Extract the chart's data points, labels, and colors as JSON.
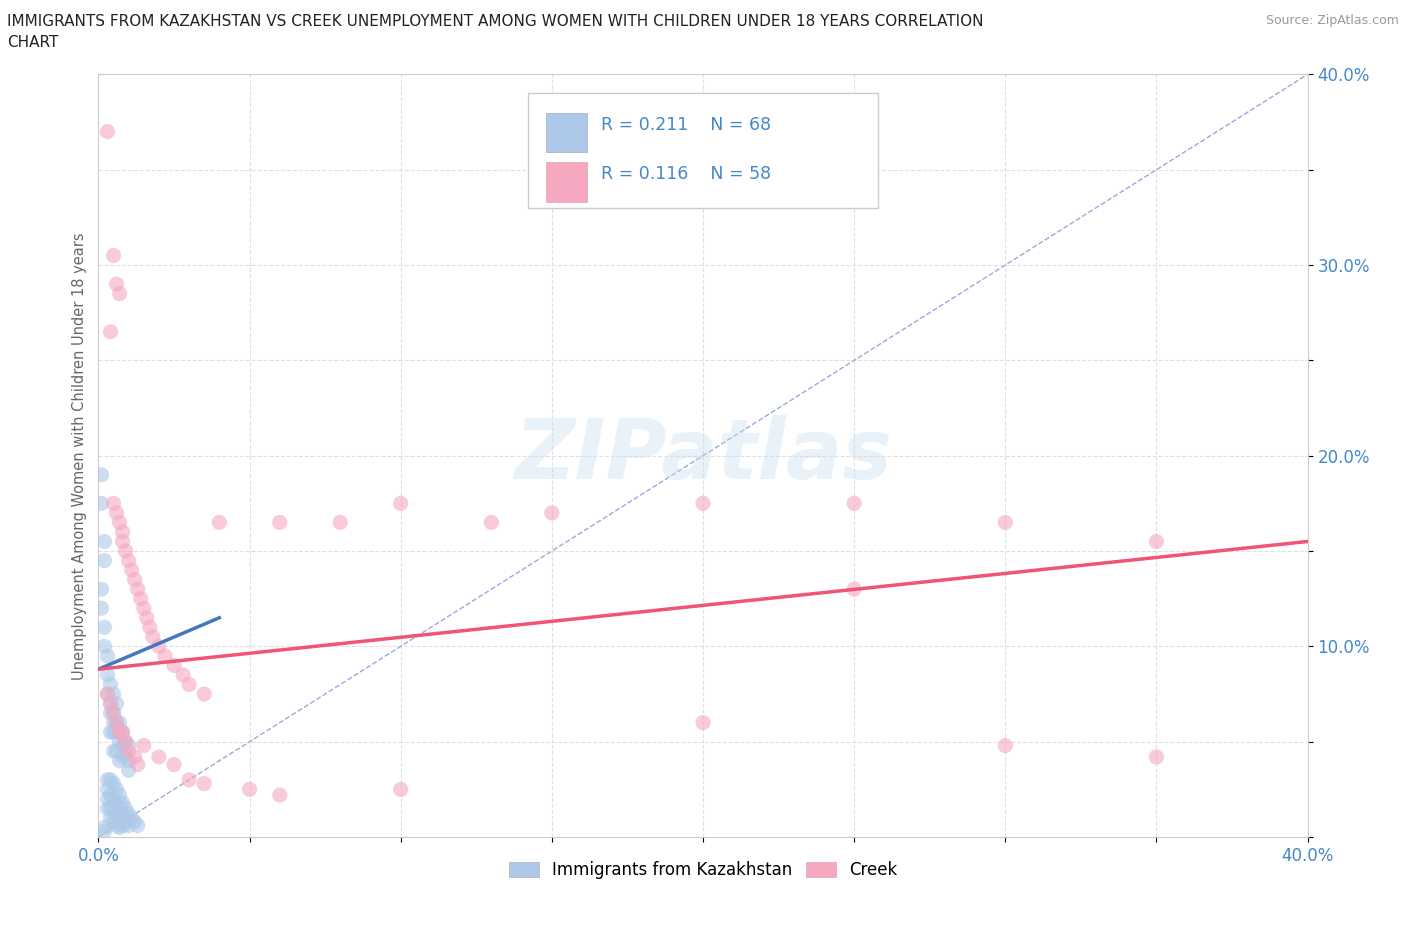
{
  "title_line1": "IMMIGRANTS FROM KAZAKHSTAN VS CREEK UNEMPLOYMENT AMONG WOMEN WITH CHILDREN UNDER 18 YEARS CORRELATION",
  "title_line2": "CHART",
  "source": "Source: ZipAtlas.com",
  "ylabel": "Unemployment Among Women with Children Under 18 years",
  "xlim": [
    0.0,
    0.4
  ],
  "ylim": [
    0.0,
    0.4
  ],
  "xticks": [
    0.0,
    0.05,
    0.1,
    0.15,
    0.2,
    0.25,
    0.3,
    0.35,
    0.4
  ],
  "yticks": [
    0.0,
    0.05,
    0.1,
    0.15,
    0.2,
    0.25,
    0.3,
    0.35,
    0.4
  ],
  "xticklabels": [
    "0.0%",
    "",
    "",
    "",
    "",
    "",
    "",
    "",
    "40.0%"
  ],
  "yticklabels": [
    "",
    "",
    "10.0%",
    "",
    "20.0%",
    "",
    "30.0%",
    "",
    "40.0%"
  ],
  "R_blue": 0.211,
  "N_blue": 68,
  "R_pink": 0.116,
  "N_pink": 58,
  "blue_color": "#adc8e8",
  "pink_color": "#f5a8bf",
  "blue_scatter": [
    [
      0.001,
      0.19
    ],
    [
      0.001,
      0.175
    ],
    [
      0.002,
      0.155
    ],
    [
      0.002,
      0.145
    ],
    [
      0.001,
      0.13
    ],
    [
      0.001,
      0.12
    ],
    [
      0.002,
      0.11
    ],
    [
      0.002,
      0.1
    ],
    [
      0.003,
      0.095
    ],
    [
      0.003,
      0.085
    ],
    [
      0.003,
      0.075
    ],
    [
      0.004,
      0.08
    ],
    [
      0.004,
      0.07
    ],
    [
      0.004,
      0.065
    ],
    [
      0.004,
      0.055
    ],
    [
      0.005,
      0.075
    ],
    [
      0.005,
      0.065
    ],
    [
      0.005,
      0.06
    ],
    [
      0.005,
      0.055
    ],
    [
      0.005,
      0.045
    ],
    [
      0.006,
      0.07
    ],
    [
      0.006,
      0.06
    ],
    [
      0.006,
      0.055
    ],
    [
      0.006,
      0.045
    ],
    [
      0.007,
      0.06
    ],
    [
      0.007,
      0.055
    ],
    [
      0.007,
      0.05
    ],
    [
      0.007,
      0.04
    ],
    [
      0.008,
      0.055
    ],
    [
      0.008,
      0.048
    ],
    [
      0.008,
      0.042
    ],
    [
      0.009,
      0.05
    ],
    [
      0.009,
      0.043
    ],
    [
      0.01,
      0.048
    ],
    [
      0.01,
      0.04
    ],
    [
      0.01,
      0.035
    ],
    [
      0.003,
      0.03
    ],
    [
      0.003,
      0.025
    ],
    [
      0.003,
      0.02
    ],
    [
      0.003,
      0.015
    ],
    [
      0.004,
      0.03
    ],
    [
      0.004,
      0.022
    ],
    [
      0.004,
      0.015
    ],
    [
      0.004,
      0.01
    ],
    [
      0.005,
      0.028
    ],
    [
      0.005,
      0.02
    ],
    [
      0.005,
      0.015
    ],
    [
      0.005,
      0.008
    ],
    [
      0.006,
      0.025
    ],
    [
      0.006,
      0.018
    ],
    [
      0.006,
      0.012
    ],
    [
      0.006,
      0.006
    ],
    [
      0.007,
      0.022
    ],
    [
      0.007,
      0.015
    ],
    [
      0.007,
      0.01
    ],
    [
      0.007,
      0.005
    ],
    [
      0.008,
      0.018
    ],
    [
      0.008,
      0.012
    ],
    [
      0.008,
      0.006
    ],
    [
      0.009,
      0.015
    ],
    [
      0.009,
      0.008
    ],
    [
      0.01,
      0.012
    ],
    [
      0.01,
      0.006
    ],
    [
      0.011,
      0.01
    ],
    [
      0.012,
      0.008
    ],
    [
      0.013,
      0.006
    ],
    [
      0.002,
      0.005
    ],
    [
      0.002,
      0.003
    ]
  ],
  "pink_scatter": [
    [
      0.003,
      0.37
    ],
    [
      0.005,
      0.305
    ],
    [
      0.007,
      0.285
    ],
    [
      0.004,
      0.265
    ],
    [
      0.006,
      0.29
    ],
    [
      0.005,
      0.175
    ],
    [
      0.006,
      0.17
    ],
    [
      0.007,
      0.165
    ],
    [
      0.008,
      0.16
    ],
    [
      0.008,
      0.155
    ],
    [
      0.009,
      0.15
    ],
    [
      0.01,
      0.145
    ],
    [
      0.011,
      0.14
    ],
    [
      0.012,
      0.135
    ],
    [
      0.013,
      0.13
    ],
    [
      0.014,
      0.125
    ],
    [
      0.015,
      0.12
    ],
    [
      0.016,
      0.115
    ],
    [
      0.017,
      0.11
    ],
    [
      0.018,
      0.105
    ],
    [
      0.02,
      0.1
    ],
    [
      0.022,
      0.095
    ],
    [
      0.025,
      0.09
    ],
    [
      0.028,
      0.085
    ],
    [
      0.03,
      0.08
    ],
    [
      0.035,
      0.075
    ],
    [
      0.04,
      0.165
    ],
    [
      0.06,
      0.165
    ],
    [
      0.08,
      0.165
    ],
    [
      0.1,
      0.175
    ],
    [
      0.13,
      0.165
    ],
    [
      0.003,
      0.075
    ],
    [
      0.004,
      0.07
    ],
    [
      0.005,
      0.065
    ],
    [
      0.006,
      0.06
    ],
    [
      0.007,
      0.055
    ],
    [
      0.008,
      0.055
    ],
    [
      0.009,
      0.05
    ],
    [
      0.01,
      0.045
    ],
    [
      0.012,
      0.042
    ],
    [
      0.013,
      0.038
    ],
    [
      0.015,
      0.048
    ],
    [
      0.02,
      0.042
    ],
    [
      0.025,
      0.038
    ],
    [
      0.03,
      0.03
    ],
    [
      0.035,
      0.028
    ],
    [
      0.05,
      0.025
    ],
    [
      0.06,
      0.022
    ],
    [
      0.1,
      0.025
    ],
    [
      0.15,
      0.17
    ],
    [
      0.2,
      0.175
    ],
    [
      0.25,
      0.13
    ],
    [
      0.25,
      0.175
    ],
    [
      0.3,
      0.165
    ],
    [
      0.35,
      0.155
    ],
    [
      0.2,
      0.06
    ],
    [
      0.3,
      0.048
    ],
    [
      0.35,
      0.042
    ]
  ],
  "blue_line": {
    "x0": 0.0,
    "x1": 0.04,
    "y0": 0.088,
    "y1": 0.115
  },
  "pink_line": {
    "x0": 0.0,
    "x1": 0.4,
    "y0": 0.088,
    "y1": 0.155
  },
  "diagonal_color": "#99aadd",
  "diagonal_style": "--",
  "watermark": "ZIPatlas",
  "background_color": "#ffffff",
  "grid_color": "#e0e0e0",
  "grid_style": "--",
  "title_color": "#222222",
  "axis_label_color": "#666666",
  "tick_label_color": "#4488cc",
  "blue_line_color": "#4477bb",
  "pink_line_color": "#ee5577",
  "legend_label_blue": "Immigrants from Kazakhstan",
  "legend_label_pink": "Creek"
}
